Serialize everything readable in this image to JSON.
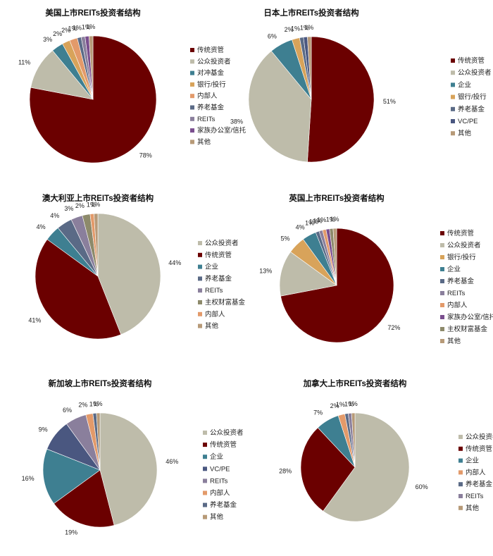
{
  "colors": {
    "传统资管": "#6b0000",
    "公众投资者": "#bebcaa",
    "对冲基金": "#3e7f91",
    "企业": "#3e7f91",
    "银行/投行": "#d8a35a",
    "内部人": "#e39a6a",
    "养老基金": "#5a6a86",
    "REITs": "#8a7f9c",
    "家族办公室/信托": "#7a4e8e",
    "VC/PE": "#4a5780",
    "主权财富基金": "#8d8a6b",
    "其他": "#b79a78"
  },
  "chart_data": [
    {
      "type": "pie",
      "title": "美国上市REITs投资者结构",
      "labels": [
        "传统资管",
        "公众投资者",
        "对冲基金",
        "银行/投行",
        "内部人",
        "养老基金",
        "REITs",
        "家族办公室/信托",
        "其他"
      ],
      "values": [
        78,
        11,
        3,
        2,
        2,
        1,
        1,
        1,
        1
      ],
      "label_texts": [
        "78%",
        "11%",
        "3%",
        "2%",
        "2%",
        "1%",
        "1%",
        "1%",
        "1%"
      ]
    },
    {
      "type": "pie",
      "title": "日本上市REITs投资者结构",
      "labels": [
        "传统资管",
        "公众投资者",
        "企业",
        "银行/投行",
        "养老基金",
        "VC/PE",
        "其他"
      ],
      "values": [
        51,
        38,
        6,
        2,
        1,
        1,
        1
      ],
      "label_texts": [
        "51%",
        "38%",
        "6%",
        "2%",
        "1%",
        "1%",
        "1%"
      ]
    },
    {
      "type": "pie",
      "title": "澳大利亚上市REITs投资者结构",
      "labels": [
        "公众投资者",
        "传统资管",
        "企业",
        "养老基金",
        "REITs",
        "主权财富基金",
        "内部人",
        "其他"
      ],
      "values": [
        44,
        41,
        4,
        4,
        3,
        2,
        1,
        1
      ],
      "label_texts": [
        "44%",
        "41%",
        "4%",
        "4%",
        "3%",
        "2%",
        "1%",
        "1%"
      ]
    },
    {
      "type": "pie",
      "title": "英国上市REITs投资者结构",
      "labels": [
        "传统资管",
        "公众投资者",
        "银行/投行",
        "企业",
        "养老基金",
        "REITs",
        "内部人",
        "家族办公室/信托",
        "主权财富基金",
        "其他"
      ],
      "values": [
        72,
        13,
        5,
        4,
        1,
        1,
        1,
        1,
        1,
        1
      ],
      "label_texts": [
        "72%",
        "13%",
        "5%",
        "4%",
        "1%",
        "1%",
        "1%",
        "1%",
        "1%",
        "1%"
      ]
    },
    {
      "type": "pie",
      "title": "新加坡上市REITs投资者结构",
      "labels": [
        "公众投资者",
        "传统资管",
        "企业",
        "VC/PE",
        "REITs",
        "内部人",
        "养老基金",
        "其他"
      ],
      "values": [
        46,
        19,
        16,
        9,
        6,
        2,
        1,
        1
      ],
      "label_texts": [
        "46%",
        "19%",
        "16%",
        "9%",
        "6%",
        "2%",
        "1%",
        "1%"
      ]
    },
    {
      "type": "pie",
      "title": "加拿大上市REITs投资者结构",
      "labels": [
        "公众投资者",
        "传统资管",
        "企业",
        "内部人",
        "养老基金",
        "REITs",
        "其他"
      ],
      "values": [
        60,
        28,
        7,
        2,
        1,
        1,
        1
      ],
      "label_texts": [
        "60%",
        "28%",
        "7%",
        "2%",
        "1%",
        "1%",
        "1%"
      ]
    }
  ]
}
